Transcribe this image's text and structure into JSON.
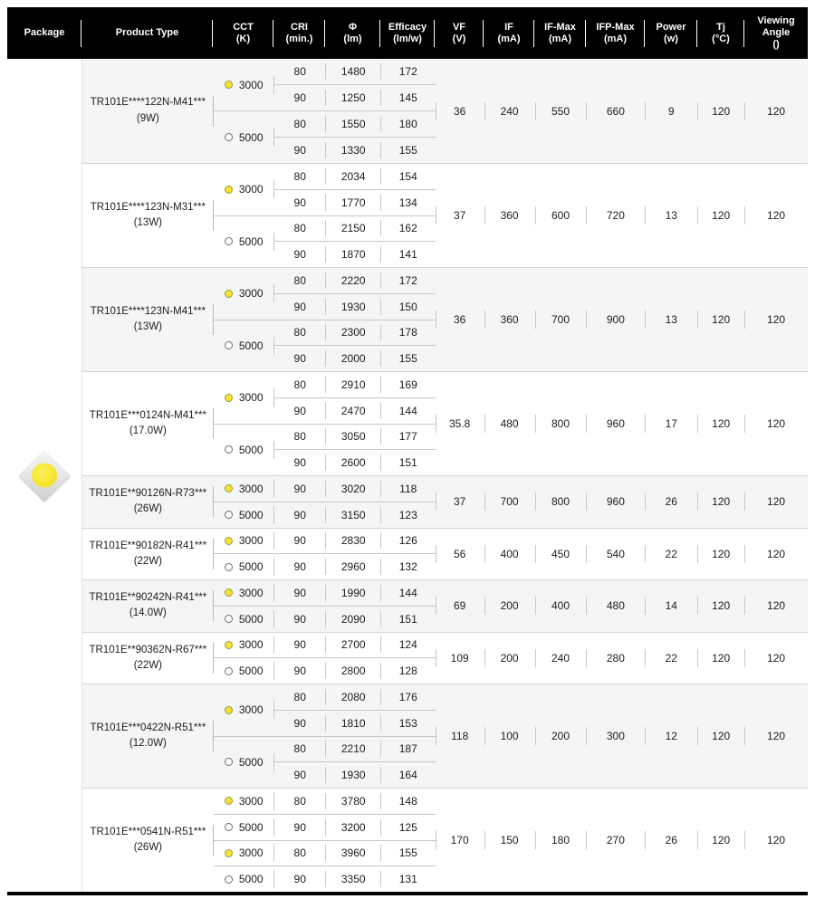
{
  "title": "LED product electrical and optical characteristics table",
  "colors": {
    "header_bg": "#000000",
    "header_text": "#ffffff",
    "stripe_bg": "#f4f5f7",
    "cct_3000_dot": "#f6e32c",
    "cct_5000_dot": "#ffffff",
    "separator": "#c7c7c7"
  },
  "package": {
    "image": "led-smd-package-photo"
  },
  "header": {
    "columns": [
      {
        "key": "package",
        "lines": [
          "Package"
        ]
      },
      {
        "key": "product",
        "lines": [
          "Product Type"
        ]
      },
      {
        "key": "cct",
        "lines": [
          "CCT",
          "(K)"
        ]
      },
      {
        "key": "cri",
        "lines": [
          "CRI",
          "(min.)"
        ]
      },
      {
        "key": "phi",
        "lines": [
          "Φ",
          "(lm)"
        ]
      },
      {
        "key": "eff",
        "lines": [
          "Efficacy",
          "(lm/w)"
        ]
      },
      {
        "key": "vf",
        "lines": [
          "VF",
          "(V)"
        ]
      },
      {
        "key": "if",
        "lines": [
          "IF",
          "(mA)"
        ]
      },
      {
        "key": "ifmax",
        "lines": [
          "IF-Max",
          "(mA)"
        ]
      },
      {
        "key": "ifpmax",
        "lines": [
          "IFP-Max",
          "(mA)"
        ]
      },
      {
        "key": "power",
        "lines": [
          "Power",
          "(w)"
        ]
      },
      {
        "key": "tj",
        "lines": [
          "Tj",
          "(°C)"
        ]
      },
      {
        "key": "view",
        "lines": [
          "Viewing",
          "Angle",
          "()"
        ]
      }
    ]
  },
  "rows": [
    {
      "product": "TR101E****122N-M41***",
      "wattage": "(9W)",
      "groups": [
        {
          "cct": "3000",
          "dot": "yellow",
          "entries": [
            {
              "cri": "80",
              "lm": "1480",
              "eff": "172"
            },
            {
              "cri": "90",
              "lm": "1250",
              "eff": "145"
            }
          ]
        },
        {
          "cct": "5000",
          "dot": "white",
          "entries": [
            {
              "cri": "80",
              "lm": "1550",
              "eff": "180"
            },
            {
              "cri": "90",
              "lm": "1330",
              "eff": "155"
            }
          ]
        }
      ],
      "vf": "36",
      "if": "240",
      "if_max": "550",
      "ifp_max": "660",
      "power": "9",
      "tj": "120",
      "viewing": "120"
    },
    {
      "product": "TR101E****123N-M31***",
      "wattage": "(13W)",
      "groups": [
        {
          "cct": "3000",
          "dot": "yellow",
          "entries": [
            {
              "cri": "80",
              "lm": "2034",
              "eff": "154"
            },
            {
              "cri": "90",
              "lm": "1770",
              "eff": "134"
            }
          ]
        },
        {
          "cct": "5000",
          "dot": "white",
          "entries": [
            {
              "cri": "80",
              "lm": "2150",
              "eff": "162"
            },
            {
              "cri": "90",
              "lm": "1870",
              "eff": "141"
            }
          ]
        }
      ],
      "vf": "37",
      "if": "360",
      "if_max": "600",
      "ifp_max": "720",
      "power": "13",
      "tj": "120",
      "viewing": "120"
    },
    {
      "product": "TR101E****123N-M41***",
      "wattage": "(13W)",
      "groups": [
        {
          "cct": "3000",
          "dot": "yellow",
          "entries": [
            {
              "cri": "80",
              "lm": "2220",
              "eff": "172"
            },
            {
              "cri": "90",
              "lm": "1930",
              "eff": "150"
            }
          ]
        },
        {
          "cct": "5000",
          "dot": "white",
          "entries": [
            {
              "cri": "80",
              "lm": "2300",
              "eff": "178"
            },
            {
              "cri": "90",
              "lm": "2000",
              "eff": "155"
            }
          ]
        }
      ],
      "vf": "36",
      "if": "360",
      "if_max": "700",
      "ifp_max": "900",
      "power": "13",
      "tj": "120",
      "viewing": "120"
    },
    {
      "product": "TR101E***0124N-M41***",
      "wattage": "(17.0W)",
      "groups": [
        {
          "cct": "3000",
          "dot": "yellow",
          "entries": [
            {
              "cri": "80",
              "lm": "2910",
              "eff": "169"
            },
            {
              "cri": "90",
              "lm": "2470",
              "eff": "144"
            }
          ]
        },
        {
          "cct": "5000",
          "dot": "white",
          "entries": [
            {
              "cri": "80",
              "lm": "3050",
              "eff": "177"
            },
            {
              "cri": "90",
              "lm": "2600",
              "eff": "151"
            }
          ]
        }
      ],
      "vf": "35.8",
      "if": "480",
      "if_max": "800",
      "ifp_max": "960",
      "power": "17",
      "tj": "120",
      "viewing": "120"
    },
    {
      "product": "TR101E**90126N-R73***",
      "wattage": "(26W)",
      "groups": [
        {
          "cct": "3000",
          "dot": "yellow",
          "entries": [
            {
              "cri": "90",
              "lm": "3020",
              "eff": "118"
            }
          ]
        },
        {
          "cct": "5000",
          "dot": "white",
          "entries": [
            {
              "cri": "90",
              "lm": "3150",
              "eff": "123"
            }
          ]
        }
      ],
      "vf": "37",
      "if": "700",
      "if_max": "800",
      "ifp_max": "960",
      "power": "26",
      "tj": "120",
      "viewing": "120"
    },
    {
      "product": "TR101E**90182N-R41***",
      "wattage": "(22W)",
      "groups": [
        {
          "cct": "3000",
          "dot": "yellow",
          "entries": [
            {
              "cri": "90",
              "lm": "2830",
              "eff": "126"
            }
          ]
        },
        {
          "cct": "5000",
          "dot": "white",
          "entries": [
            {
              "cri": "90",
              "lm": "2960",
              "eff": "132"
            }
          ]
        }
      ],
      "vf": "56",
      "if": "400",
      "if_max": "450",
      "ifp_max": "540",
      "power": "22",
      "tj": "120",
      "viewing": "120"
    },
    {
      "product": "TR101E**90242N-R41***",
      "wattage": "(14.0W)",
      "groups": [
        {
          "cct": "3000",
          "dot": "yellow",
          "entries": [
            {
              "cri": "90",
              "lm": "1990",
              "eff": "144"
            }
          ]
        },
        {
          "cct": "5000",
          "dot": "white",
          "entries": [
            {
              "cri": "90",
              "lm": "2090",
              "eff": "151"
            }
          ]
        }
      ],
      "vf": "69",
      "if": "200",
      "if_max": "400",
      "ifp_max": "480",
      "power": "14",
      "tj": "120",
      "viewing": "120"
    },
    {
      "product": "TR101E**90362N-R67***",
      "wattage": "(22W)",
      "groups": [
        {
          "cct": "3000",
          "dot": "yellow",
          "entries": [
            {
              "cri": "90",
              "lm": "2700",
              "eff": "124"
            }
          ]
        },
        {
          "cct": "5000",
          "dot": "white",
          "entries": [
            {
              "cri": "90",
              "lm": "2800",
              "eff": "128"
            }
          ]
        }
      ],
      "vf": "109",
      "if": "200",
      "if_max": "240",
      "ifp_max": "280",
      "power": "22",
      "tj": "120",
      "viewing": "120"
    },
    {
      "product": "TR101E***0422N-R51***",
      "wattage": "(12.0W)",
      "groups": [
        {
          "cct": "3000",
          "dot": "yellow",
          "entries": [
            {
              "cri": "80",
              "lm": "2080",
              "eff": "176"
            },
            {
              "cri": "90",
              "lm": "1810",
              "eff": "153"
            }
          ]
        },
        {
          "cct": "5000",
          "dot": "white",
          "entries": [
            {
              "cri": "80",
              "lm": "2210",
              "eff": "187"
            },
            {
              "cri": "90",
              "lm": "1930",
              "eff": "164"
            }
          ]
        }
      ],
      "vf": "118",
      "if": "100",
      "if_max": "200",
      "ifp_max": "300",
      "power": "12",
      "tj": "120",
      "viewing": "120"
    },
    {
      "product": "TR101E***0541N-R51***",
      "wattage": "(26W)",
      "groups": [
        {
          "cct": "3000",
          "dot": "yellow",
          "entries": [
            {
              "cri": "80",
              "lm": "3780",
              "eff": "148"
            }
          ]
        },
        {
          "cct": "5000",
          "dot": "white",
          "entries": [
            {
              "cri": "90",
              "lm": "3200",
              "eff": "125"
            }
          ]
        },
        {
          "cct": "3000",
          "dot": "yellow",
          "entries": [
            {
              "cri": "80",
              "lm": "3960",
              "eff": "155"
            }
          ]
        },
        {
          "cct": "5000",
          "dot": "white",
          "entries": [
            {
              "cri": "90",
              "lm": "3350",
              "eff": "131"
            }
          ]
        }
      ],
      "vf": "170",
      "if": "150",
      "if_max": "180",
      "ifp_max": "270",
      "power": "26",
      "tj": "120",
      "viewing": "120"
    }
  ]
}
